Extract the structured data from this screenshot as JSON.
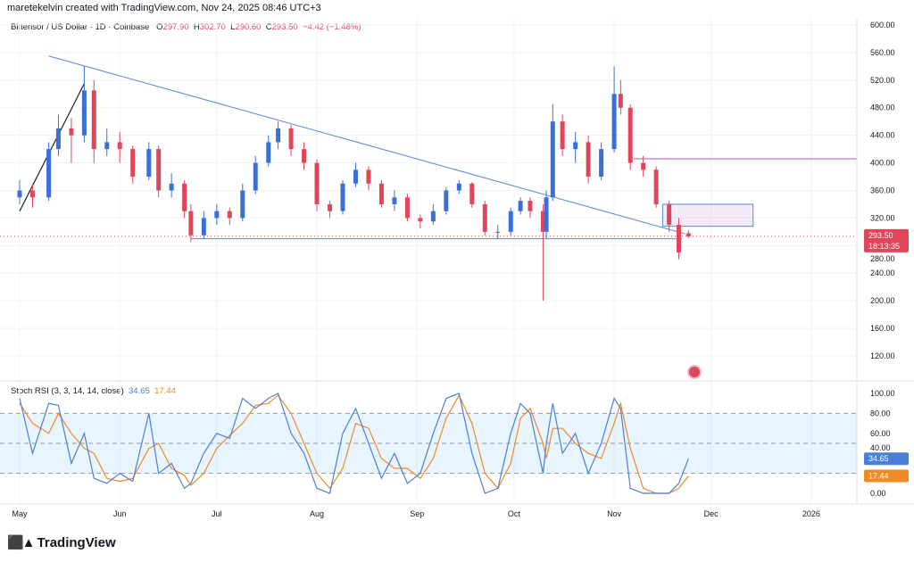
{
  "header": {
    "credit": "maretekelvin created with TradingView.com, Nov 24, 2025 08:46 UTC+3"
  },
  "legend": {
    "symbol": "Bittensor / US Dollar · 1D · Coinbase",
    "open_label": "O",
    "open": "297.90",
    "high_label": "H",
    "high": "302.70",
    "low_label": "L",
    "low": "290.60",
    "close_label": "C",
    "close": "293.50",
    "change": "−4.42 (−1.48%)"
  },
  "price_badge": {
    "price": "293.50",
    "countdown": "18:13:35",
    "color": "#e0455a"
  },
  "indicator": {
    "name": "Stoch RSI (3, 3, 14, 14, close)",
    "k": "34.65",
    "d": "17.44",
    "k_color": "#4a7fd6",
    "d_color": "#f08a24"
  },
  "brand": {
    "logo_text": "TradingView"
  },
  "colors": {
    "up": "#3a6fd8",
    "down": "#e0455a",
    "trendline": "#5b86d6",
    "zone": "#b04fc0"
  },
  "chart_data": {
    "type": "candlestick",
    "title": "Bittensor / US Dollar · 1D · Coinbase",
    "price_axis": {
      "ticks": [
        600,
        560,
        520,
        480,
        440,
        400,
        360,
        320,
        280,
        240,
        200,
        160,
        120
      ],
      "range": [
        110,
        605
      ]
    },
    "time_axis": {
      "labels": [
        {
          "date": "2025-05-01",
          "text": "May"
        },
        {
          "date": "2025-06-01",
          "text": "Jun"
        },
        {
          "date": "2025-07-01",
          "text": "Jul"
        },
        {
          "date": "2025-08-01",
          "text": "Aug"
        },
        {
          "date": "2025-09-01",
          "text": "Sep"
        },
        {
          "date": "2025-10-01",
          "text": "Oct"
        },
        {
          "date": "2025-11-01",
          "text": "Nov"
        },
        {
          "date": "2025-12-01",
          "text": "Dec"
        },
        {
          "date": "2026-01-01",
          "text": "2026"
        }
      ]
    },
    "candles": [
      [
        "2025-05-01",
        350,
        375,
        340,
        360
      ],
      [
        "2025-05-05",
        360,
        370,
        335,
        350
      ],
      [
        "2025-05-10",
        350,
        430,
        345,
        420
      ],
      [
        "2025-05-13",
        420,
        470,
        410,
        450
      ],
      [
        "2025-05-17",
        450,
        465,
        400,
        440
      ],
      [
        "2025-05-21",
        440,
        540,
        430,
        505
      ],
      [
        "2025-05-24",
        505,
        520,
        400,
        420
      ],
      [
        "2025-05-28",
        420,
        450,
        410,
        430
      ],
      [
        "2025-06-01",
        430,
        445,
        400,
        420
      ],
      [
        "2025-06-05",
        420,
        425,
        370,
        380
      ],
      [
        "2025-06-10",
        380,
        430,
        375,
        420
      ],
      [
        "2025-06-13",
        420,
        425,
        350,
        360
      ],
      [
        "2025-06-17",
        360,
        385,
        350,
        370
      ],
      [
        "2025-06-21",
        370,
        375,
        320,
        330
      ],
      [
        "2025-06-23",
        330,
        340,
        285,
        295
      ],
      [
        "2025-06-27",
        295,
        330,
        290,
        320
      ],
      [
        "2025-07-01",
        320,
        340,
        310,
        330
      ],
      [
        "2025-07-05",
        330,
        335,
        310,
        320
      ],
      [
        "2025-07-09",
        320,
        370,
        315,
        360
      ],
      [
        "2025-07-13",
        360,
        410,
        355,
        400
      ],
      [
        "2025-07-17",
        400,
        440,
        395,
        430
      ],
      [
        "2025-07-20",
        430,
        460,
        420,
        450
      ],
      [
        "2025-07-24",
        450,
        455,
        410,
        420
      ],
      [
        "2025-07-28",
        420,
        430,
        390,
        400
      ],
      [
        "2025-08-01",
        400,
        405,
        330,
        340
      ],
      [
        "2025-08-05",
        340,
        345,
        320,
        330
      ],
      [
        "2025-08-09",
        330,
        375,
        325,
        370
      ],
      [
        "2025-08-13",
        370,
        400,
        365,
        390
      ],
      [
        "2025-08-17",
        390,
        395,
        360,
        370
      ],
      [
        "2025-08-21",
        370,
        375,
        335,
        340
      ],
      [
        "2025-08-25",
        340,
        360,
        330,
        350
      ],
      [
        "2025-08-29",
        350,
        355,
        315,
        320
      ],
      [
        "2025-09-02",
        320,
        325,
        305,
        315
      ],
      [
        "2025-09-06",
        315,
        340,
        310,
        330
      ],
      [
        "2025-09-10",
        330,
        365,
        325,
        360
      ],
      [
        "2025-09-14",
        360,
        375,
        355,
        370
      ],
      [
        "2025-09-18",
        370,
        372,
        335,
        340
      ],
      [
        "2025-09-22",
        340,
        345,
        295,
        300
      ],
      [
        "2025-09-26",
        300,
        310,
        290,
        300
      ],
      [
        "2025-09-30",
        300,
        335,
        295,
        330
      ],
      [
        "2025-10-03",
        330,
        350,
        325,
        345
      ],
      [
        "2025-10-06",
        345,
        350,
        320,
        330
      ],
      [
        "2025-10-10",
        330,
        340,
        200,
        300
      ],
      [
        "2025-10-11",
        300,
        360,
        290,
        350
      ],
      [
        "2025-10-13",
        350,
        485,
        345,
        460
      ],
      [
        "2025-10-16",
        460,
        470,
        410,
        420
      ],
      [
        "2025-10-20",
        420,
        445,
        400,
        430
      ],
      [
        "2025-10-24",
        430,
        440,
        370,
        380
      ],
      [
        "2025-10-28",
        380,
        430,
        375,
        420
      ],
      [
        "2025-11-01",
        420,
        540,
        415,
        500
      ],
      [
        "2025-11-03",
        500,
        520,
        470,
        480
      ],
      [
        "2025-11-06",
        480,
        485,
        390,
        400
      ],
      [
        "2025-11-10",
        400,
        410,
        380,
        390
      ],
      [
        "2025-11-14",
        390,
        395,
        335,
        340
      ],
      [
        "2025-11-18",
        340,
        345,
        300,
        310
      ],
      [
        "2025-11-21",
        310,
        320,
        260,
        270
      ],
      [
        "2025-11-24",
        297.9,
        302.7,
        290.6,
        293.5
      ]
    ],
    "drawings": {
      "descending_trendline": [
        [
          "2025-05-10",
          555
        ],
        [
          "2025-11-23",
          297
        ]
      ],
      "support_line": [
        [
          "2025-06-23",
          290
        ],
        [
          "2025-11-22",
          290
        ]
      ],
      "rally_line": [
        [
          "2025-05-01",
          330
        ],
        [
          "2025-05-21",
          515
        ]
      ],
      "resistance_line": [
        [
          "2025-11-07",
          406
        ],
        [
          "2026-01-15",
          406
        ]
      ],
      "supply_zone": {
        "from": "2025-11-16",
        "to": "2025-12-14",
        "low": 308,
        "high": 340
      },
      "last_price_line": 293.5
    },
    "stoch_rsi": {
      "ticks": [
        100,
        80,
        60,
        40,
        0
      ],
      "bands": [
        80,
        50,
        20
      ],
      "range": [
        0,
        100
      ],
      "k": [
        95,
        40,
        90,
        88,
        30,
        60,
        15,
        10,
        20,
        12,
        80,
        20,
        30,
        5,
        10,
        40,
        60,
        55,
        95,
        85,
        95,
        100,
        60,
        40,
        5,
        0,
        60,
        85,
        50,
        15,
        40,
        10,
        20,
        60,
        95,
        100,
        40,
        0,
        5,
        60,
        90,
        80,
        20,
        50,
        90,
        40,
        60,
        20,
        50,
        95,
        85,
        5,
        0,
        0,
        0,
        10,
        34.65
      ],
      "d": [
        90,
        70,
        60,
        80,
        60,
        45,
        40,
        15,
        12,
        15,
        45,
        50,
        25,
        18,
        8,
        20,
        45,
        58,
        70,
        88,
        90,
        98,
        80,
        50,
        20,
        5,
        25,
        70,
        65,
        35,
        25,
        25,
        15,
        35,
        75,
        98,
        70,
        20,
        5,
        30,
        75,
        85,
        50,
        35,
        65,
        65,
        50,
        40,
        35,
        70,
        90,
        45,
        5,
        0,
        0,
        5,
        17.44
      ]
    }
  }
}
